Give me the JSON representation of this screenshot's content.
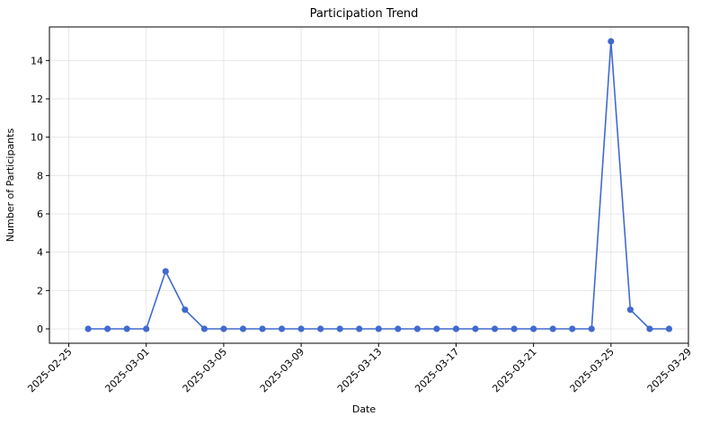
{
  "chart_data": {
    "type": "line",
    "title": "Participation Trend",
    "xlabel": "Date",
    "ylabel": "Number of Participants",
    "grid": true,
    "line_color": "#4169cf",
    "marker": "circle",
    "xlim": [
      "2025-02-24",
      "2025-03-29"
    ],
    "ylim": [
      -0.75,
      15.75
    ],
    "x_ticks": [
      "2025-02-25",
      "2025-03-01",
      "2025-03-05",
      "2025-03-09",
      "2025-03-13",
      "2025-03-17",
      "2025-03-21",
      "2025-03-25",
      "2025-03-29"
    ],
    "y_ticks": [
      0,
      2,
      4,
      6,
      8,
      10,
      12,
      14
    ],
    "series": [
      {
        "x": [
          "2025-02-26",
          "2025-02-27",
          "2025-02-28",
          "2025-03-01",
          "2025-03-02",
          "2025-03-03",
          "2025-03-04",
          "2025-03-05",
          "2025-03-06",
          "2025-03-07",
          "2025-03-08",
          "2025-03-09",
          "2025-03-10",
          "2025-03-11",
          "2025-03-12",
          "2025-03-13",
          "2025-03-14",
          "2025-03-15",
          "2025-03-16",
          "2025-03-17",
          "2025-03-18",
          "2025-03-19",
          "2025-03-20",
          "2025-03-21",
          "2025-03-22",
          "2025-03-23",
          "2025-03-24",
          "2025-03-25",
          "2025-03-26",
          "2025-03-27",
          "2025-03-28"
        ],
        "values": [
          0,
          0,
          0,
          0,
          3,
          1,
          0,
          0,
          0,
          0,
          0,
          0,
          0,
          0,
          0,
          0,
          0,
          0,
          0,
          0,
          0,
          0,
          0,
          0,
          0,
          0,
          0,
          15,
          1,
          0,
          0
        ]
      }
    ]
  }
}
